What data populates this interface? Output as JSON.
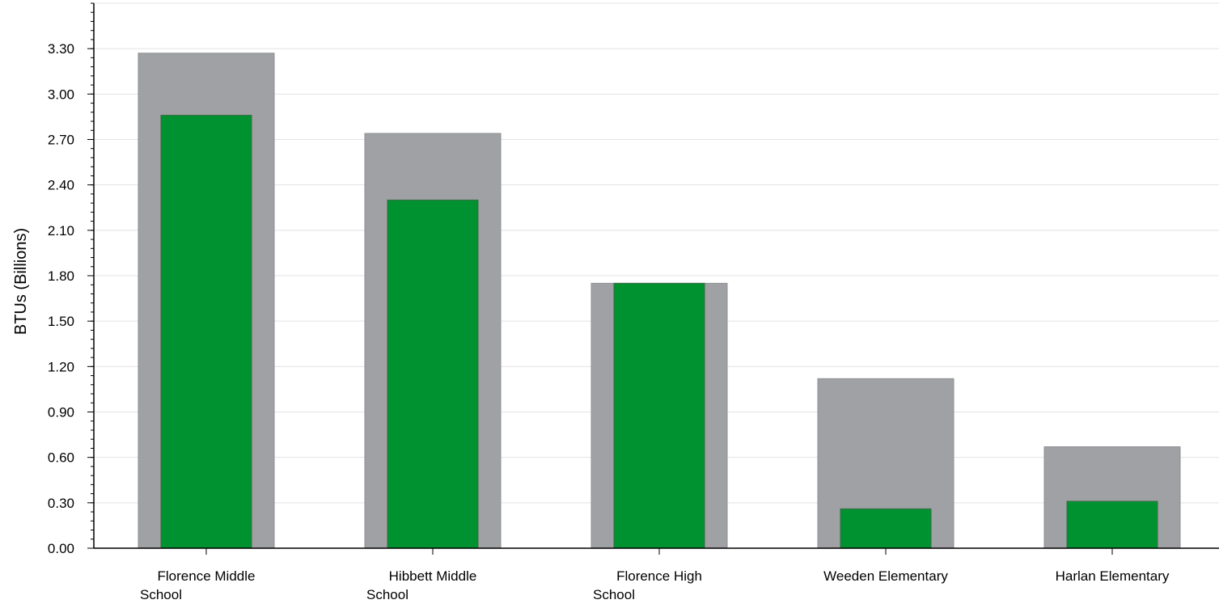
{
  "chart_data": {
    "type": "bar",
    "categories": [
      [
        "Florence Middle",
        "School"
      ],
      [
        "Hibbett Middle",
        "School"
      ],
      [
        "Florence High",
        "School"
      ],
      [
        "Weeden Elementary"
      ],
      [
        "Harlan Elementary"
      ]
    ],
    "series": [
      {
        "values": [
          3.27,
          2.74,
          1.75,
          1.12,
          0.67
        ],
        "color": "#a0a1a4"
      },
      {
        "values": [
          2.86,
          2.3,
          1.75,
          0.26,
          0.31
        ],
        "color": "#009230"
      }
    ],
    "title": "",
    "xlabel": "",
    "ylabel": "BTUs (Billions)",
    "ylim": [
      0,
      3.6
    ],
    "yticks": [
      "0.00",
      "0.30",
      "0.60",
      "0.90",
      "1.20",
      "1.50",
      "1.80",
      "2.10",
      "2.40",
      "2.70",
      "3.00",
      "3.30"
    ],
    "grid": true,
    "legend": "none"
  }
}
